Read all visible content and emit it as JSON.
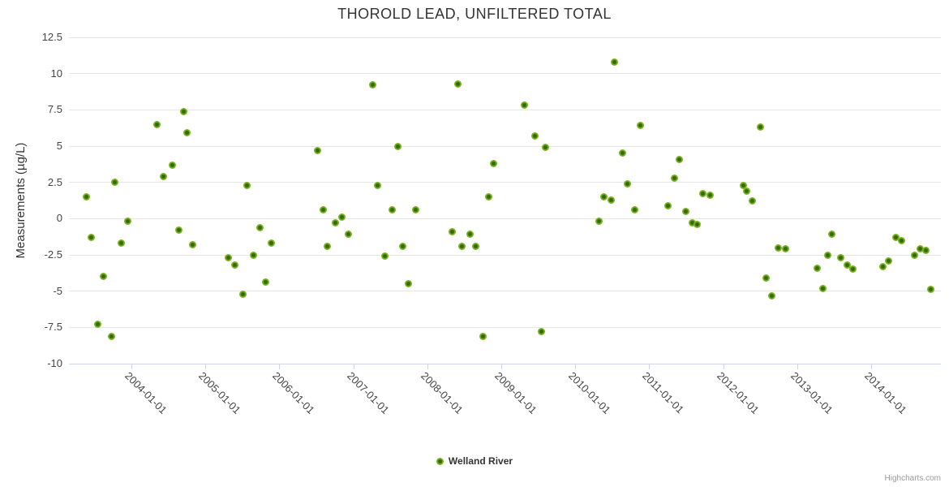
{
  "credit_label": "Highcharts.com",
  "colors": {
    "series_green": "#7db41e",
    "series_green_center": "#2f6b07",
    "gridline": "#e6e6e6",
    "axis_line": "#ccd6eb",
    "title_text": "#333333",
    "tick_text": "#444444",
    "credit_text": "#999999"
  },
  "chart_data": {
    "type": "scatter",
    "title": "THOROLD LEAD, UNFILTERED TOTAL",
    "xlabel": "",
    "ylabel": "Measurements (µg/L)",
    "ylim": [
      -10,
      12.5
    ],
    "yticks": [
      12.5,
      10,
      7.5,
      5,
      2.5,
      0,
      -2.5,
      -5,
      -7.5,
      -10
    ],
    "xlim_decimal_years": [
      2003.156,
      2014.944
    ],
    "xticks": [
      "2004-01-01",
      "2005-01-01",
      "2006-01-01",
      "2007-01-01",
      "2008-01-01",
      "2009-01-01",
      "2010-01-01",
      "2011-01-01",
      "2012-01-01",
      "2013-01-01",
      "2014-01-01"
    ],
    "grid": true,
    "legend_position": "bottom",
    "series": [
      {
        "name": "Welland River",
        "color": "#7db41e",
        "points": [
          [
            "2003-05-23",
            1.5
          ],
          [
            "2003-06-14",
            -1.3
          ],
          [
            "2003-07-17",
            -7.3
          ],
          [
            "2003-08-15",
            -4.0
          ],
          [
            "2003-09-24",
            -8.1
          ],
          [
            "2003-10-12",
            2.5
          ],
          [
            "2003-11-10",
            -1.7
          ],
          [
            "2003-12-13",
            -0.2
          ],
          [
            "2004-05-04",
            6.5
          ],
          [
            "2004-06-06",
            2.9
          ],
          [
            "2004-07-19",
            3.7
          ],
          [
            "2004-08-21",
            -0.8
          ],
          [
            "2004-09-16",
            7.4
          ],
          [
            "2004-10-01",
            5.9
          ],
          [
            "2004-10-30",
            -1.8
          ],
          [
            "2005-04-23",
            -2.7
          ],
          [
            "2005-05-26",
            -3.2
          ],
          [
            "2005-07-05",
            -5.2
          ],
          [
            "2005-07-22",
            2.3
          ],
          [
            "2005-08-25",
            -2.5
          ],
          [
            "2005-09-27",
            -0.6
          ],
          [
            "2005-10-25",
            -4.4
          ],
          [
            "2005-11-22",
            -1.7
          ],
          [
            "2006-07-09",
            4.7
          ],
          [
            "2006-08-03",
            0.6
          ],
          [
            "2006-08-26",
            -1.9
          ],
          [
            "2006-10-05",
            -0.3
          ],
          [
            "2006-11-07",
            0.1
          ],
          [
            "2006-12-09",
            -1.1
          ],
          [
            "2007-04-05",
            9.2
          ],
          [
            "2007-05-01",
            2.3
          ],
          [
            "2007-06-06",
            -2.6
          ],
          [
            "2007-07-09",
            0.6
          ],
          [
            "2007-08-07",
            5.0
          ],
          [
            "2007-09-02",
            -1.9
          ],
          [
            "2007-10-01",
            -4.5
          ],
          [
            "2007-11-06",
            0.6
          ],
          [
            "2008-05-04",
            -0.9
          ],
          [
            "2008-05-30",
            9.3
          ],
          [
            "2008-06-20",
            -1.9
          ],
          [
            "2008-07-31",
            -1.1
          ],
          [
            "2008-08-29",
            -1.9
          ],
          [
            "2008-10-04",
            -8.1
          ],
          [
            "2008-11-02",
            1.5
          ],
          [
            "2008-11-24",
            3.8
          ],
          [
            "2009-04-23",
            7.8
          ],
          [
            "2009-06-17",
            5.7
          ],
          [
            "2009-07-16",
            -7.8
          ],
          [
            "2009-08-07",
            4.9
          ],
          [
            "2010-04-27",
            -0.2
          ],
          [
            "2010-05-22",
            1.5
          ],
          [
            "2010-06-27",
            1.3
          ],
          [
            "2010-07-12",
            10.8
          ],
          [
            "2010-08-21",
            4.5
          ],
          [
            "2010-09-16",
            2.4
          ],
          [
            "2010-10-19",
            0.6
          ],
          [
            "2010-11-17",
            6.4
          ],
          [
            "2011-04-01",
            0.9
          ],
          [
            "2011-05-04",
            2.8
          ],
          [
            "2011-05-30",
            4.1
          ],
          [
            "2011-06-28",
            0.5
          ],
          [
            "2011-07-31",
            -0.3
          ],
          [
            "2011-08-26",
            -0.4
          ],
          [
            "2011-09-24",
            1.7
          ],
          [
            "2011-10-30",
            1.6
          ],
          [
            "2012-04-08",
            2.3
          ],
          [
            "2012-04-26",
            1.9
          ],
          [
            "2012-05-25",
            1.2
          ],
          [
            "2012-07-04",
            6.3
          ],
          [
            "2012-08-02",
            -4.1
          ],
          [
            "2012-08-27",
            -5.3
          ],
          [
            "2012-09-29",
            -2.0
          ],
          [
            "2012-11-05",
            -2.1
          ],
          [
            "2013-04-08",
            -3.4
          ],
          [
            "2013-05-07",
            -4.8
          ],
          [
            "2013-05-29",
            -2.5
          ],
          [
            "2013-06-20",
            -1.1
          ],
          [
            "2013-08-03",
            -2.7
          ],
          [
            "2013-09-04",
            -3.2
          ],
          [
            "2013-10-04",
            -3.5
          ],
          [
            "2014-02-27",
            -3.3
          ],
          [
            "2014-03-25",
            -2.9
          ],
          [
            "2014-05-01",
            -1.3
          ],
          [
            "2014-05-30",
            -1.5
          ],
          [
            "2014-08-03",
            -2.5
          ],
          [
            "2014-09-01",
            -2.1
          ],
          [
            "2014-09-27",
            -2.2
          ],
          [
            "2014-10-23",
            -4.9
          ]
        ]
      }
    ]
  }
}
